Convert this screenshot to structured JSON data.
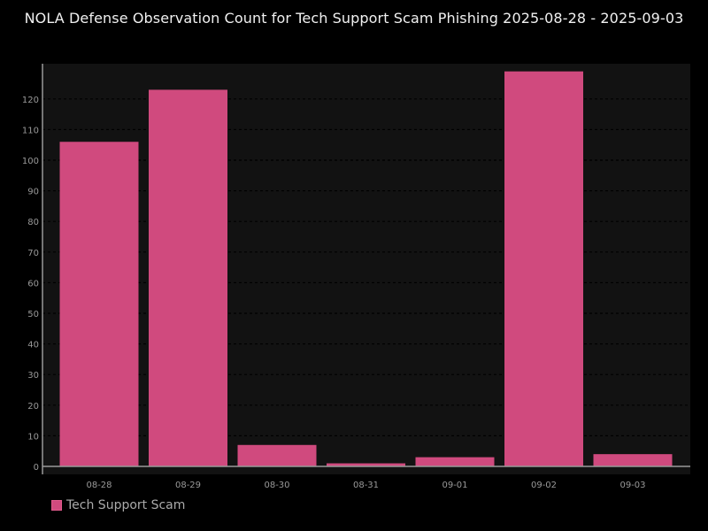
{
  "chart_data": {
    "type": "bar",
    "title": "NOLA Defense Observation Count for Tech Support Scam Phishing 2025-08-28 - 2025-09-03",
    "categories": [
      "08-28",
      "08-29",
      "08-30",
      "08-31",
      "09-01",
      "09-02",
      "09-03"
    ],
    "series": [
      {
        "name": "Tech Support Scam",
        "color": "#d04a7e",
        "values": [
          106,
          123,
          7,
          1,
          3,
          129,
          4
        ]
      }
    ],
    "xlabel": "",
    "ylabel": "",
    "ylim": [
      0,
      130
    ],
    "yticks": [
      0,
      10,
      20,
      30,
      40,
      50,
      60,
      70,
      80,
      90,
      100,
      110,
      120
    ],
    "grid": true,
    "legend_position": "bottom-left"
  },
  "colors": {
    "background": "#000000",
    "plot_background": "#121212",
    "bar": "#d04a7e",
    "gridline": "#000000",
    "axis": "#999999",
    "tick_label": "#999999",
    "title": "#f0f0f0"
  }
}
